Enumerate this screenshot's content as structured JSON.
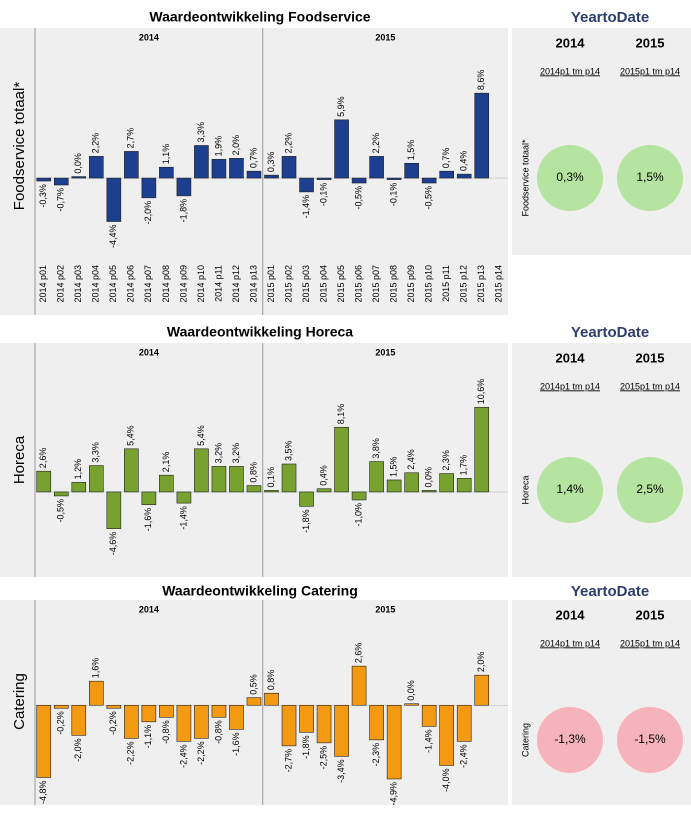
{
  "chart_data": [
    {
      "type": "bar",
      "title": "Waardeontwikkeling Foodservice",
      "y_label": "Foodservice totaal*",
      "color": "#1c3f8f",
      "ylim": [
        -8.5,
        15
      ],
      "panels": [
        {
          "name": "2014",
          "categories": [
            "2014 p01",
            "2014 p02",
            "2014 p03",
            "2014 p04",
            "2014 p05",
            "2014 p06",
            "2014 p07",
            "2014 p08",
            "2014 p09",
            "2014 p10",
            "2014 p11",
            "2014 p12",
            "2014 p13"
          ],
          "values": [
            -0.3,
            -0.7,
            0.0,
            2.2,
            -4.4,
            2.7,
            -2.0,
            1.1,
            -1.8,
            3.3,
            1.9,
            2.0,
            0.7
          ],
          "value_labels": [
            "-0,3%",
            "-0,7%",
            "0,0%",
            "2,2%",
            "-4,4%",
            "2,7%",
            "-2,0%",
            "1,1%",
            "-1,8%",
            "3,3%",
            "1,9%",
            "2,0%",
            "0,7%"
          ]
        },
        {
          "name": "2015",
          "categories": [
            "2015 p01",
            "2015 p02",
            "2015 p03",
            "2015 p04",
            "2015 p05",
            "2015 p06",
            "2015 p07",
            "2015 p08",
            "2015 p09",
            "2015 p10",
            "2015 p11",
            "2015 p12",
            "2015 p13",
            "2015 p14"
          ],
          "values": [
            0.3,
            2.2,
            -1.4,
            -0.1,
            5.9,
            -0.5,
            2.2,
            -0.1,
            1.5,
            -0.5,
            0.7,
            0.4,
            8.6,
            null
          ],
          "value_labels": [
            "0,3%",
            "2,2%",
            "-1,4%",
            "-0,1%",
            "5,9%",
            "-0,5%",
            "2,2%",
            "-0,1%",
            "1,5%",
            "-0,5%",
            "0,7%",
            "0,4%",
            "8,6%",
            null
          ]
        }
      ]
    },
    {
      "type": "bar",
      "title": "Waardeontwikkeling Horeca",
      "y_label": "Horeca",
      "color": "#78a22f",
      "ylim": [
        -10.4,
        18.4
      ],
      "panels": [
        {
          "name": "2014",
          "values": [
            2.6,
            -0.5,
            1.2,
            3.3,
            -4.6,
            5.4,
            -1.6,
            2.1,
            -1.4,
            5.4,
            3.2,
            3.2,
            0.8
          ],
          "value_labels": [
            "2,6%",
            "-0,5%",
            "1,2%",
            "3,3%",
            "-4,6%",
            "5,4%",
            "-1,6%",
            "2,1%",
            "-1,4%",
            "5,4%",
            "3,2%",
            "3,2%",
            "0,8%"
          ]
        },
        {
          "name": "2015",
          "values": [
            0.1,
            3.5,
            -1.8,
            0.4,
            8.1,
            -1.0,
            3.8,
            1.5,
            2.4,
            0.0,
            2.3,
            1.7,
            10.6,
            null
          ],
          "value_labels": [
            "0,1%",
            "3,5%",
            "-1,8%",
            "0,4%",
            "8,1%",
            "-1,0%",
            "3,8%",
            "1,5%",
            "2,4%",
            "0,0%",
            "2,3%",
            "1,7%",
            "10,6%",
            null
          ]
        }
      ]
    },
    {
      "type": "bar",
      "title": "Waardeontwikkeling Catering",
      "y_label": "Catering",
      "color": "#f39a12",
      "ylim": [
        -6.3,
        6.8
      ],
      "panels": [
        {
          "name": "2014",
          "values": [
            -4.8,
            -0.2,
            -2.0,
            1.6,
            -0.2,
            -2.2,
            -1.1,
            -0.8,
            -2.4,
            -2.2,
            -0.8,
            -1.6,
            0.5
          ],
          "value_labels": [
            "-4,8%",
            "-0,2%",
            "-2,0%",
            "1,6%",
            "-0,2%",
            "-2,2%",
            "-1,1%",
            "-0,8%",
            "-2,4%",
            "-2,2%",
            "-0,8%",
            "-1,6%",
            "0,5%"
          ]
        },
        {
          "name": "2015",
          "values": [
            0.8,
            -2.7,
            -1.8,
            -2.5,
            -3.4,
            2.6,
            -2.3,
            -4.9,
            0.0,
            -1.4,
            -4.0,
            -2.4,
            2.0,
            null
          ],
          "value_labels": [
            "0,8%",
            "-2,7%",
            "-1,8%",
            "-2,5%",
            "-3,4%",
            "2,6%",
            "-2,3%",
            "-4,9%",
            "0,0%",
            "-1,4%",
            "-4,0%",
            "-2,4%",
            "2,0%",
            null
          ]
        }
      ]
    }
  ],
  "ytd": [
    {
      "title": "YeartoDate",
      "columns": [
        "2014",
        "2015"
      ],
      "periods": [
        "2014p1 tm p14",
        "2015p1 tm p14"
      ],
      "label": "Foodservice totaal*",
      "values": [
        0.3,
        1.5
      ],
      "value_labels": [
        "0,3%",
        "1,5%"
      ],
      "colors": [
        "#b5e3a0",
        "#b5e3a0"
      ]
    },
    {
      "title": "YeartoDate",
      "columns": [
        "2014",
        "2015"
      ],
      "periods": [
        "2014p1 tm p14",
        "2015p1 tm p14"
      ],
      "label": "Horeca",
      "values": [
        1.4,
        2.5
      ],
      "value_labels": [
        "1,4%",
        "2,5%"
      ],
      "colors": [
        "#b5e3a0",
        "#b5e3a0"
      ]
    },
    {
      "title": "YeartoDate",
      "columns": [
        "2014",
        "2015"
      ],
      "periods": [
        "2014p1 tm p14",
        "2015p1 tm p14"
      ],
      "label": "Catering",
      "values": [
        -1.3,
        -1.5
      ],
      "value_labels": [
        "-1,3%",
        "-1,5%"
      ],
      "colors": [
        "#f7b3bb",
        "#f7b3bb"
      ]
    }
  ]
}
